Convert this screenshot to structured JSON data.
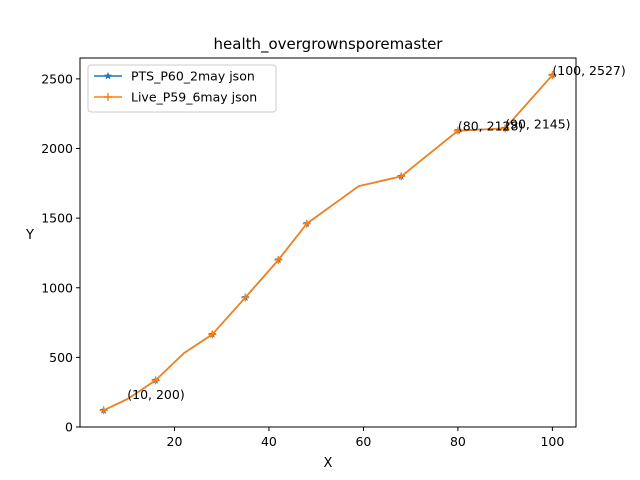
{
  "chart_data": {
    "type": "line",
    "title": "health_overgrownsporemaster",
    "xlabel": "X",
    "ylabel": "Y",
    "xlim": [
      0,
      105
    ],
    "ylim": [
      0,
      2650
    ],
    "xticks": [
      20,
      40,
      60,
      80,
      100
    ],
    "yticks": [
      0,
      500,
      1000,
      1500,
      2000,
      2500
    ],
    "grid": false,
    "legend_position": "top-left",
    "series": [
      {
        "name": "PTS_P60_2may json",
        "color": "#1f77b4",
        "marker": "star",
        "x": [
          5,
          10,
          16,
          22,
          28,
          35,
          42,
          48,
          59,
          68,
          80,
          90,
          100
        ],
        "y": [
          120,
          200,
          335,
          530,
          665,
          930,
          1200,
          1460,
          1730,
          1800,
          2128,
          2145,
          2527
        ]
      },
      {
        "name": "Live_P59_6may json",
        "color": "#ff7f0e",
        "marker": "plus",
        "x": [
          5,
          10,
          16,
          22,
          28,
          35,
          42,
          48,
          59,
          68,
          80,
          90,
          100
        ],
        "y": [
          120,
          200,
          335,
          530,
          665,
          930,
          1200,
          1460,
          1730,
          1800,
          2128,
          2145,
          2527
        ]
      }
    ],
    "marker_x": [
      5,
      16,
      28,
      35,
      42,
      48,
      68,
      80,
      90,
      100
    ],
    "annotations": [
      {
        "x": 10,
        "y": 200,
        "text": "(10, 200)"
      },
      {
        "x": 80,
        "y": 2128,
        "text": "(80, 2128)"
      },
      {
        "x": 90,
        "y": 2145,
        "text": "(90, 2145)"
      },
      {
        "x": 100,
        "y": 2527,
        "text": "(100, 2527)"
      }
    ]
  }
}
